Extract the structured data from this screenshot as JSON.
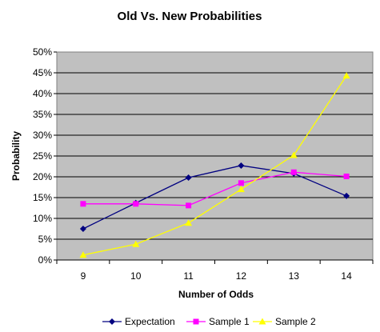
{
  "chart_data": {
    "type": "line",
    "title": "Old Vs. New Probabilities",
    "xlabel": "Number of Odds",
    "ylabel": "Probability",
    "categories": [
      "9",
      "10",
      "11",
      "12",
      "13",
      "14"
    ],
    "ylim": [
      0,
      0.5
    ],
    "ytick_labels": [
      "0%",
      "5%",
      "10%",
      "15%",
      "20%",
      "25%",
      "30%",
      "35%",
      "40%",
      "45%",
      "50%"
    ],
    "grid": true,
    "legend_position": "bottom",
    "plot_background": "#c0c0c0",
    "series": [
      {
        "name": "Expectation",
        "color": "#000080",
        "marker": "diamond",
        "values": [
          0.075,
          0.137,
          0.198,
          0.227,
          0.208,
          0.154
        ]
      },
      {
        "name": "Sample 1",
        "color": "#ff00ff",
        "marker": "square",
        "values": [
          0.135,
          0.135,
          0.131,
          0.185,
          0.211,
          0.201
        ]
      },
      {
        "name": "Sample 2",
        "color": "#ffff00",
        "marker": "triangle",
        "values": [
          0.012,
          0.038,
          0.089,
          0.17,
          0.252,
          0.443
        ]
      }
    ]
  }
}
